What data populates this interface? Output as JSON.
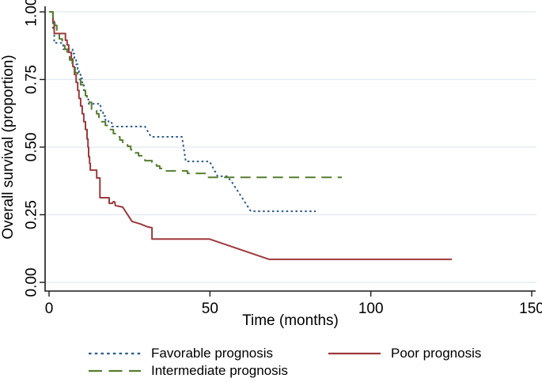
{
  "chart_data": {
    "type": "line",
    "subtype": "kaplan-meier-survival",
    "title": "",
    "xlabel": "Time (months)",
    "ylabel": "Overall survival (proportion)",
    "xlim": [
      0,
      150
    ],
    "ylim": [
      0,
      1
    ],
    "x_ticks": [
      0,
      50,
      100,
      150
    ],
    "x_tick_labels": [
      "0",
      "50",
      "100",
      "150"
    ],
    "y_ticks": [
      0,
      0.25,
      0.5,
      0.75,
      1
    ],
    "y_tick_labels": [
      "0.00",
      "0.25",
      "0.50",
      "0.75",
      "1.00"
    ],
    "grid": "horizontal",
    "gridline_color": "#dfe9f1",
    "legend_position": "bottom",
    "series": [
      {
        "id": "favorable",
        "name": "Favorable prognosis",
        "color": "#2e5c8c",
        "line_style": "dotted",
        "points": [
          [
            0,
            1
          ],
          [
            1.2,
            1
          ],
          [
            1.2,
            0.94
          ],
          [
            1.6,
            0.94
          ],
          [
            1.6,
            0.885
          ],
          [
            4.4,
            0.885
          ],
          [
            4.4,
            0.862
          ],
          [
            7.3,
            0.862
          ],
          [
            7.3,
            0.846
          ],
          [
            7.9,
            0.846
          ],
          [
            7.9,
            0.826
          ],
          [
            8.4,
            0.826
          ],
          [
            8.4,
            0.806
          ],
          [
            8.9,
            0.806
          ],
          [
            8.9,
            0.788
          ],
          [
            9.3,
            0.788
          ],
          [
            9.3,
            0.768
          ],
          [
            9.8,
            0.768
          ],
          [
            9.8,
            0.754
          ],
          [
            10.3,
            0.754
          ],
          [
            10.3,
            0.739
          ],
          [
            10.8,
            0.739
          ],
          [
            10.8,
            0.71
          ],
          [
            11.3,
            0.71
          ],
          [
            11.3,
            0.69
          ],
          [
            11.8,
            0.69
          ],
          [
            11.8,
            0.676
          ],
          [
            12.3,
            0.676
          ],
          [
            12.3,
            0.66
          ],
          [
            16,
            0.66
          ],
          [
            16,
            0.635
          ],
          [
            16.8,
            0.635
          ],
          [
            16.8,
            0.615
          ],
          [
            17.5,
            0.615
          ],
          [
            17.5,
            0.6
          ],
          [
            18.5,
            0.6
          ],
          [
            18.5,
            0.59
          ],
          [
            19.5,
            0.59
          ],
          [
            19.5,
            0.576
          ],
          [
            29.8,
            0.576
          ],
          [
            31.7,
            0.538
          ],
          [
            41.3,
            0.538
          ],
          [
            42.5,
            0.447
          ],
          [
            49.9,
            0.447
          ],
          [
            52.4,
            0.392
          ],
          [
            55.3,
            0.392
          ],
          [
            56.8,
            0.371
          ],
          [
            62.7,
            0.263
          ],
          [
            82.9,
            0.263
          ]
        ]
      },
      {
        "id": "poor",
        "name": "Poor prognosis",
        "color": "#9d393d",
        "line_style": "solid",
        "points": [
          [
            0,
            1
          ],
          [
            1.2,
            1
          ],
          [
            1.2,
            0.965
          ],
          [
            1.6,
            0.965
          ],
          [
            1.6,
            0.92
          ],
          [
            5.1,
            0.92
          ],
          [
            5.1,
            0.895
          ],
          [
            5.6,
            0.895
          ],
          [
            5.6,
            0.878
          ],
          [
            6.1,
            0.878
          ],
          [
            6.1,
            0.85
          ],
          [
            6.9,
            0.85
          ],
          [
            6.9,
            0.826
          ],
          [
            7.4,
            0.826
          ],
          [
            7.4,
            0.797
          ],
          [
            7.9,
            0.797
          ],
          [
            7.9,
            0.768
          ],
          [
            8.4,
            0.768
          ],
          [
            8.4,
            0.739
          ],
          [
            8.9,
            0.739
          ],
          [
            8.9,
            0.71
          ],
          [
            9.3,
            0.71
          ],
          [
            9.3,
            0.68
          ],
          [
            9.8,
            0.68
          ],
          [
            9.8,
            0.652
          ],
          [
            10.3,
            0.652
          ],
          [
            10.3,
            0.623
          ],
          [
            10.8,
            0.623
          ],
          [
            10.8,
            0.594
          ],
          [
            11.3,
            0.594
          ],
          [
            11.3,
            0.565
          ],
          [
            11.8,
            0.565
          ],
          [
            11.8,
            0.53
          ],
          [
            12.1,
            0.53
          ],
          [
            12.1,
            0.5
          ],
          [
            12.3,
            0.5
          ],
          [
            12.3,
            0.464
          ],
          [
            12.6,
            0.464
          ],
          [
            12.6,
            0.44
          ],
          [
            12.8,
            0.44
          ],
          [
            12.8,
            0.415
          ],
          [
            14.8,
            0.415
          ],
          [
            14.8,
            0.386
          ],
          [
            15.8,
            0.386
          ],
          [
            15.8,
            0.313
          ],
          [
            18.7,
            0.313
          ],
          [
            18.7,
            0.292
          ],
          [
            19.7,
            0.292
          ],
          [
            19.9,
            0.298
          ],
          [
            20.4,
            0.298
          ],
          [
            20.6,
            0.284
          ],
          [
            22.9,
            0.278
          ],
          [
            25.8,
            0.225
          ],
          [
            28.3,
            0.216
          ],
          [
            30.7,
            0.205
          ],
          [
            32,
            0.202
          ],
          [
            32,
            0.16
          ],
          [
            49.9,
            0.16
          ],
          [
            68.4,
            0.085
          ],
          [
            125.2,
            0.085
          ]
        ]
      },
      {
        "id": "intermediate",
        "name": "Intermediate prognosis",
        "color": "#567d2f",
        "line_style": "long-dash",
        "points": [
          [
            0,
            1
          ],
          [
            1.2,
            1
          ],
          [
            1.2,
            0.975
          ],
          [
            1.8,
            0.975
          ],
          [
            1.8,
            0.95
          ],
          [
            2.4,
            0.95
          ],
          [
            2.4,
            0.925
          ],
          [
            3.2,
            0.925
          ],
          [
            3.2,
            0.9
          ],
          [
            4.1,
            0.9
          ],
          [
            4.1,
            0.88
          ],
          [
            4.9,
            0.88
          ],
          [
            4.9,
            0.862
          ],
          [
            5.6,
            0.862
          ],
          [
            5.6,
            0.845
          ],
          [
            6.4,
            0.845
          ],
          [
            6.4,
            0.822
          ],
          [
            7.2,
            0.822
          ],
          [
            7.2,
            0.798
          ],
          [
            8.1,
            0.798
          ],
          [
            8.1,
            0.775
          ],
          [
            8.9,
            0.775
          ],
          [
            8.9,
            0.75
          ],
          [
            9.8,
            0.75
          ],
          [
            9.8,
            0.73
          ],
          [
            10.6,
            0.73
          ],
          [
            10.6,
            0.71
          ],
          [
            11.3,
            0.71
          ],
          [
            11.3,
            0.69
          ],
          [
            11.8,
            0.69
          ],
          [
            11.8,
            0.666
          ],
          [
            13.2,
            0.666
          ],
          [
            13.2,
            0.64
          ],
          [
            14.8,
            0.64
          ],
          [
            14.8,
            0.623
          ],
          [
            15.5,
            0.623
          ],
          [
            15.5,
            0.61
          ],
          [
            16.3,
            0.61
          ],
          [
            16.3,
            0.594
          ],
          [
            17.5,
            0.594
          ],
          [
            17.5,
            0.58
          ],
          [
            18.7,
            0.58
          ],
          [
            18.7,
            0.565
          ],
          [
            20,
            0.565
          ],
          [
            20,
            0.55
          ],
          [
            21.2,
            0.55
          ],
          [
            21.2,
            0.538
          ],
          [
            22,
            0.538
          ],
          [
            22,
            0.526
          ],
          [
            22.9,
            0.526
          ],
          [
            22.9,
            0.512
          ],
          [
            24.4,
            0.512
          ],
          [
            24.4,
            0.503
          ],
          [
            25.4,
            0.503
          ],
          [
            25.4,
            0.49
          ],
          [
            26.8,
            0.49
          ],
          [
            26.8,
            0.479
          ],
          [
            27.8,
            0.479
          ],
          [
            27.8,
            0.468
          ],
          [
            28.8,
            0.468
          ],
          [
            28.8,
            0.453
          ],
          [
            29.8,
            0.453
          ],
          [
            29.8,
            0.45
          ],
          [
            32,
            0.45
          ],
          [
            32,
            0.444
          ],
          [
            32.7,
            0.444
          ],
          [
            32.7,
            0.438
          ],
          [
            33.4,
            0.438
          ],
          [
            33.4,
            0.43
          ],
          [
            34.4,
            0.43
          ],
          [
            34.4,
            0.421
          ],
          [
            35.2,
            0.421
          ],
          [
            35.2,
            0.412
          ],
          [
            43,
            0.412
          ],
          [
            43,
            0.403
          ],
          [
            48.5,
            0.403
          ],
          [
            48.5,
            0.388
          ],
          [
            91,
            0.388
          ]
        ]
      }
    ]
  }
}
